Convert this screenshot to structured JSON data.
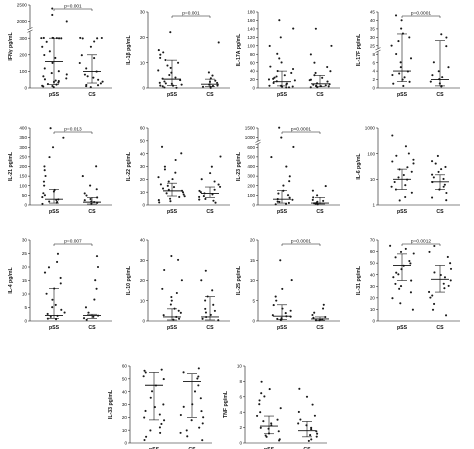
{
  "figure": {
    "panels": [
      {
        "ylabel": "IFNγ pg/mL",
        "p": "p=0.001",
        "ticks": [
          "0",
          "100",
          "200",
          "300",
          "2000",
          "2500"
        ],
        "break_after": 3
      },
      {
        "ylabel": "IL-1β pg/mL",
        "p": "p=0.001",
        "ticks": [
          "0",
          "10",
          "20",
          "30"
        ],
        "break_after": null
      },
      {
        "ylabel": "IL-17A pg/mL",
        "p": "",
        "ticks": [
          "0",
          "20",
          "40",
          "60",
          "80",
          "100",
          "120",
          "140",
          "160",
          "180"
        ],
        "break_after": null
      },
      {
        "ylabel": "IL-17F pg/mL",
        "p": "p=0.0001",
        "ticks": [
          "0",
          "2",
          "4",
          "6",
          "8",
          "25",
          "30",
          "35",
          "40",
          "45"
        ],
        "break_after": 4
      },
      {
        "ylabel": "IL-21 pg/mL",
        "p": "p=0.013",
        "ticks": [
          "0",
          "50",
          "100",
          "150",
          "200",
          "250",
          "300",
          "350",
          "400"
        ],
        "break_after": null
      },
      {
        "ylabel": "IL-22 pg/mL",
        "p": "",
        "ticks": [
          "0",
          "10",
          "20",
          "30",
          "40",
          "50",
          "60"
        ],
        "break_after": null
      },
      {
        "ylabel": "IL-23 pg/mL",
        "p": "p<0.0001",
        "ticks": [
          "0",
          "100",
          "200",
          "300",
          "400",
          "500",
          "600",
          "1000",
          "1500"
        ],
        "break_after": 6
      },
      {
        "ylabel": "IL-6 pg/mL",
        "p": "",
        "ticks": [
          "1",
          "10",
          "100",
          "1000"
        ],
        "break_after": null
      },
      {
        "ylabel": "IL-4 pg/mL",
        "p": "p=0.007",
        "ticks": [
          "0",
          "5",
          "10",
          "15",
          "20",
          "25",
          "30"
        ],
        "break_after": null
      },
      {
        "ylabel": "IL-10 pg/mL",
        "p": "",
        "ticks": [
          "0",
          "10",
          "20",
          "30",
          "40"
        ],
        "break_after": null
      },
      {
        "ylabel": "IL-25 pg/mL",
        "p": "p=0.0001",
        "ticks": [
          "0",
          "5",
          "10",
          "15",
          "20"
        ],
        "break_after": null
      },
      {
        "ylabel": "IL-31 pg/mL",
        "p": "p=0.0012",
        "ticks": [
          "0",
          "10",
          "20",
          "30",
          "40",
          "50",
          "60",
          "70"
        ],
        "break_after": null
      },
      {
        "ylabel": "IL-33 pg/mL",
        "p": "",
        "ticks": [
          "0",
          "10",
          "20",
          "30",
          "40",
          "50",
          "60"
        ],
        "break_after": null
      },
      {
        "ylabel": "TNF pg/mL",
        "p": "",
        "ticks": [
          "0",
          "2",
          "4",
          "6",
          "8",
          "10"
        ],
        "break_after": null
      }
    ],
    "categories": [
      "pSS",
      "CS"
    ]
  },
  "chart_data": [
    {
      "type": "scatter",
      "ylabel": "IFNγ pg/mL",
      "categories": [
        "pSS",
        "CS"
      ],
      "ylim": [
        0,
        2500
      ],
      "annotation": "p=0.001",
      "series": [
        {
          "name": "pSS",
          "values": [
            5,
            8,
            12,
            15,
            20,
            25,
            30,
            35,
            40,
            45,
            50,
            60,
            70,
            80,
            90,
            100,
            120,
            150,
            180,
            200,
            220,
            250,
            280,
            300,
            300,
            300,
            300,
            300,
            300,
            300,
            2000,
            2200,
            2400
          ]
        },
        {
          "name": "CS",
          "values": [
            5,
            10,
            15,
            20,
            30,
            40,
            50,
            60,
            70,
            80,
            100,
            120,
            150,
            180,
            200,
            250,
            280,
            300,
            300,
            300,
            300
          ]
        }
      ],
      "summary": {
        "pSS": {
          "median": 160,
          "q1": 20,
          "q3": 300
        },
        "CS": {
          "median": 100,
          "q1": 30,
          "q3": 200
        }
      }
    },
    {
      "type": "scatter",
      "ylabel": "IL-1β pg/mL",
      "categories": [
        "pSS",
        "CS"
      ],
      "ylim": [
        0,
        30
      ],
      "annotation": "p=0.001",
      "series": [
        {
          "name": "pSS",
          "values": [
            0.2,
            0.3,
            0.5,
            0.8,
            1,
            1.2,
            1.5,
            1.8,
            2,
            2.5,
            3,
            3.5,
            4,
            5,
            6,
            7,
            8,
            9,
            10,
            11,
            12,
            13,
            14,
            15,
            22
          ]
        },
        {
          "name": "CS",
          "values": [
            0.2,
            0.4,
            0.6,
            0.8,
            1,
            1.5,
            2,
            2.5,
            3,
            4,
            5,
            6,
            18
          ]
        }
      ],
      "summary": {
        "pSS": {
          "median": 3.5,
          "q1": 1,
          "q3": 11
        },
        "CS": {
          "median": 1.5,
          "q1": 0.6,
          "q3": 3.5
        }
      }
    },
    {
      "type": "scatter",
      "ylabel": "IL-17A pg/mL",
      "categories": [
        "pSS",
        "CS"
      ],
      "ylim": [
        0,
        180
      ],
      "annotation": "",
      "series": [
        {
          "name": "pSS",
          "values": [
            1,
            2,
            3,
            4,
            5,
            6,
            8,
            10,
            12,
            15,
            18,
            20,
            22,
            25,
            28,
            30,
            35,
            40,
            45,
            50,
            60,
            70,
            80,
            100,
            120,
            140,
            160
          ]
        },
        {
          "name": "CS",
          "values": [
            1,
            2,
            3,
            4,
            5,
            6,
            8,
            10,
            12,
            15,
            18,
            20,
            25,
            30,
            35,
            40,
            50,
            60,
            80,
            100,
            140
          ]
        }
      ],
      "summary": {
        "pSS": {
          "median": 15,
          "q1": 5,
          "q3": 40
        },
        "CS": {
          "median": 10,
          "q1": 3,
          "q3": 30
        }
      }
    },
    {
      "type": "scatter",
      "ylabel": "IL-17F pg/mL",
      "categories": [
        "pSS",
        "CS"
      ],
      "ylim": [
        0,
        45
      ],
      "annotation": "p=0.0001",
      "series": [
        {
          "name": "pSS",
          "values": [
            0.5,
            1,
            1.5,
            2,
            2.5,
            3,
            3.5,
            4,
            5,
            6,
            7,
            8,
            25,
            28,
            30,
            32,
            35,
            40,
            43
          ]
        },
        {
          "name": "CS",
          "values": [
            0.3,
            0.5,
            1,
            1.5,
            2,
            2.5,
            3,
            4,
            5,
            6,
            25,
            30,
            32
          ]
        }
      ],
      "summary": {
        "pSS": {
          "median": 4,
          "q1": 1.5,
          "q3": 32
        },
        "CS": {
          "median": 2,
          "q1": 0.5,
          "q3": 28
        }
      }
    },
    {
      "type": "scatter",
      "ylabel": "IL-21 pg/mL",
      "categories": [
        "pSS",
        "CS"
      ],
      "ylim": [
        0,
        400
      ],
      "annotation": "p=0.013",
      "series": [
        {
          "name": "pSS",
          "values": [
            5,
            10,
            15,
            20,
            25,
            30,
            40,
            50,
            60,
            70,
            80,
            100,
            120,
            150,
            180,
            200,
            250,
            300,
            350,
            400
          ]
        },
        {
          "name": "CS",
          "values": [
            5,
            10,
            15,
            20,
            25,
            30,
            40,
            50,
            60,
            80,
            100,
            150,
            200
          ]
        }
      ],
      "summary": {
        "pSS": {
          "median": 30,
          "q1": 10,
          "q3": 80
        },
        "CS": {
          "median": 15,
          "q1": 5,
          "q3": 40
        }
      }
    },
    {
      "type": "scatter",
      "ylabel": "IL-22 pg/mL",
      "categories": [
        "pSS",
        "CS"
      ],
      "ylim": [
        0,
        60
      ],
      "annotation": "",
      "series": [
        {
          "name": "pSS",
          "values": [
            2,
            3,
            4,
            5,
            6,
            7,
            8,
            9,
            10,
            11,
            12,
            13,
            14,
            15,
            16,
            18,
            20,
            22,
            25,
            28,
            30,
            35,
            40,
            45
          ]
        },
        {
          "name": "CS",
          "values": [
            2,
            3,
            4,
            5,
            6,
            7,
            8,
            9,
            10,
            11,
            12,
            14,
            16,
            18,
            20,
            25,
            30,
            38
          ]
        }
      ],
      "summary": {
        "pSS": {
          "median": 11,
          "q1": 7,
          "q3": 17
        },
        "CS": {
          "median": 9,
          "q1": 6,
          "q3": 14
        }
      }
    },
    {
      "type": "scatter",
      "ylabel": "IL-23 pg/mL",
      "categories": [
        "pSS",
        "CS"
      ],
      "ylim": [
        0,
        1500
      ],
      "annotation": "p<0.0001",
      "series": [
        {
          "name": "pSS",
          "values": [
            5,
            10,
            20,
            30,
            40,
            50,
            60,
            80,
            100,
            120,
            150,
            200,
            250,
            300,
            400,
            500,
            600,
            1000,
            1500
          ]
        },
        {
          "name": "CS",
          "values": [
            5,
            10,
            15,
            20,
            30,
            40,
            50,
            80,
            100,
            150,
            200
          ]
        }
      ],
      "summary": {
        "pSS": {
          "median": 60,
          "q1": 20,
          "q3": 150
        },
        "CS": {
          "median": 20,
          "q1": 10,
          "q3": 80
        }
      }
    },
    {
      "type": "scatter",
      "ylabel": "IL-6 pg/mL",
      "categories": [
        "pSS",
        "CS"
      ],
      "ylim": [
        1,
        1000
      ],
      "annotation": "",
      "series": [
        {
          "name": "pSS",
          "values": [
            1.5,
            2,
            3,
            4,
            5,
            6,
            8,
            10,
            12,
            15,
            20,
            25,
            30,
            40,
            50,
            60,
            80,
            100,
            200,
            500
          ]
        },
        {
          "name": "CS",
          "values": [
            1.5,
            2,
            3,
            4,
            5,
            6,
            8,
            10,
            12,
            15,
            20,
            25,
            30,
            40,
            50,
            80
          ]
        }
      ],
      "summary": {
        "pSS": {
          "median": 10,
          "q1": 4,
          "q3": 25
        },
        "CS": {
          "median": 8,
          "q1": 4,
          "q3": 15
        }
      }
    },
    {
      "type": "scatter",
      "ylabel": "IL-4 pg/mL",
      "categories": [
        "pSS",
        "CS"
      ],
      "ylim": [
        0,
        30
      ],
      "annotation": "p=0.007",
      "series": [
        {
          "name": "pSS",
          "values": [
            0.5,
            1,
            1.5,
            2,
            2.5,
            3,
            4,
            5,
            6,
            8,
            10,
            12,
            14,
            16,
            18,
            20,
            22,
            25
          ]
        },
        {
          "name": "CS",
          "values": [
            0.5,
            1,
            1.5,
            2,
            3,
            5,
            8,
            12,
            15,
            20,
            24
          ]
        }
      ],
      "summary": {
        "pSS": {
          "median": 2,
          "q1": 1,
          "q3": 12
        },
        "CS": {
          "median": 2,
          "q1": 1,
          "q3": 2.5
        }
      }
    },
    {
      "type": "scatter",
      "ylabel": "IL-10 pg/mL",
      "categories": [
        "pSS",
        "CS"
      ],
      "ylim": [
        0,
        40
      ],
      "annotation": "",
      "series": [
        {
          "name": "pSS",
          "values": [
            0.5,
            1,
            2,
            3,
            4,
            5,
            6,
            8,
            10,
            12,
            14,
            16,
            20,
            25,
            30,
            32
          ]
        },
        {
          "name": "CS",
          "values": [
            0.5,
            1,
            2,
            3,
            4,
            5,
            6,
            8,
            10,
            12,
            15,
            20,
            25
          ]
        }
      ],
      "summary": {
        "pSS": {
          "median": 2,
          "q1": 0.5,
          "q3": 6
        },
        "CS": {
          "median": 2,
          "q1": 0.5,
          "q3": 12
        }
      }
    },
    {
      "type": "scatter",
      "ylabel": "IL-25 pg/mL",
      "categories": [
        "pSS",
        "CS"
      ],
      "ylim": [
        0,
        20
      ],
      "annotation": "p=0.0001",
      "series": [
        {
          "name": "pSS",
          "values": [
            0.2,
            0.4,
            0.6,
            0.8,
            1,
            1.2,
            1.5,
            2,
            2.5,
            3,
            4,
            5,
            6,
            8,
            10,
            15
          ]
        },
        {
          "name": "CS",
          "values": [
            0.1,
            0.2,
            0.3,
            0.5,
            0.8,
            1,
            1.5,
            2,
            3,
            4
          ]
        }
      ],
      "summary": {
        "pSS": {
          "median": 1.2,
          "q1": 0.4,
          "q3": 4
        },
        "CS": {
          "median": 0.5,
          "q1": 0.2,
          "q3": 1
        }
      }
    },
    {
      "type": "scatter",
      "ylabel": "IL-31 pg/mL",
      "categories": [
        "pSS",
        "CS"
      ],
      "ylim": [
        0,
        70
      ],
      "annotation": "p=0.0012",
      "series": [
        {
          "name": "pSS",
          "values": [
            10,
            15,
            20,
            25,
            28,
            30,
            32,
            35,
            38,
            40,
            42,
            45,
            48,
            50,
            52,
            55,
            58,
            60,
            62,
            65
          ]
        },
        {
          "name": "CS",
          "values": [
            5,
            10,
            15,
            20,
            22,
            25,
            28,
            30,
            32,
            35,
            38,
            40,
            42,
            45,
            50,
            55,
            60,
            65
          ]
        }
      ],
      "summary": {
        "pSS": {
          "median": 48,
          "q1": 35,
          "q3": 58
        },
        "CS": {
          "median": 36,
          "q1": 25,
          "q3": 48
        }
      }
    },
    {
      "type": "scatter",
      "ylabel": "IL-33 pg/mL",
      "categories": [
        "pSS",
        "CS"
      ],
      "ylim": [
        0,
        60
      ],
      "annotation": "",
      "series": [
        {
          "name": "pSS",
          "values": [
            2,
            5,
            8,
            10,
            12,
            15,
            18,
            20,
            22,
            25,
            28,
            30,
            35,
            40,
            45,
            50,
            52,
            55,
            56,
            57
          ]
        },
        {
          "name": "CS",
          "values": [
            2,
            5,
            8,
            10,
            12,
            15,
            18,
            20,
            22,
            25,
            28,
            30,
            35,
            40,
            45,
            50,
            52,
            55,
            58
          ]
        }
      ],
      "summary": {
        "pSS": {
          "median": 45,
          "q1": 18,
          "q3": 55
        },
        "CS": {
          "median": 48,
          "q1": 20,
          "q3": 54
        }
      }
    },
    {
      "type": "scatter",
      "ylabel": "TNF pg/mL",
      "categories": [
        "pSS",
        "CS"
      ],
      "ylim": [
        0,
        10
      ],
      "annotation": "",
      "series": [
        {
          "name": "pSS",
          "values": [
            0.3,
            0.5,
            0.8,
            1,
            1.2,
            1.5,
            1.8,
            2,
            2.3,
            2.5,
            2.8,
            3,
            3.5,
            4,
            4.5,
            5,
            5.5,
            6,
            6.5,
            7,
            8
          ]
        },
        {
          "name": "CS",
          "values": [
            0.3,
            0.5,
            0.8,
            1,
            1.2,
            1.5,
            1.8,
            2,
            2.3,
            2.5,
            3,
            3.5,
            4,
            5,
            6,
            7
          ]
        }
      ],
      "summary": {
        "pSS": {
          "median": 2.2,
          "q1": 1.2,
          "q3": 3.5
        },
        "CS": {
          "median": 1.6,
          "q1": 0.8,
          "q3": 2.8
        }
      }
    }
  ]
}
